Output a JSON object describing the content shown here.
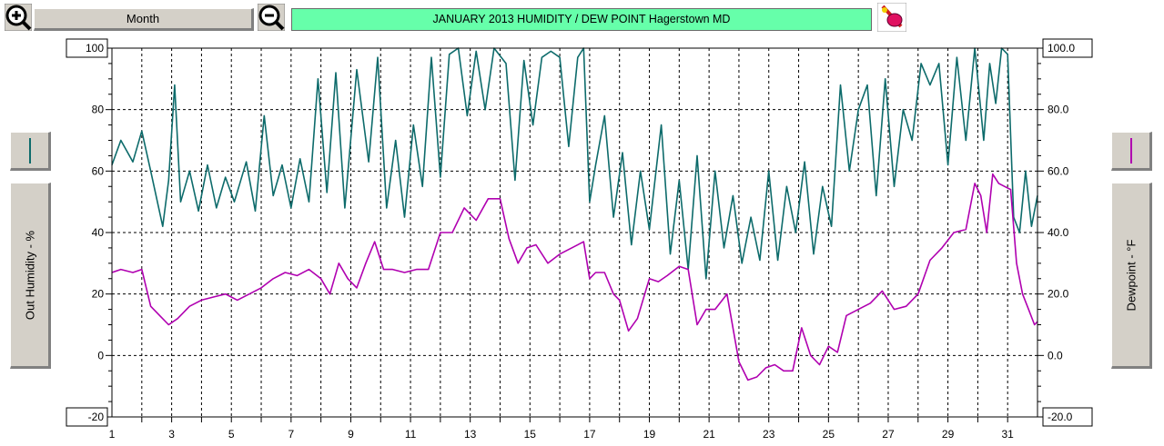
{
  "toolbar": {
    "period_label": "Month",
    "title": "JANUARY  2013  HUMIDITY / DEW POINT  Hagerstown MD"
  },
  "colors": {
    "humidity": "#0d6b6b",
    "dewpoint": "#b000b0",
    "title_bg": "#66ffaa",
    "panel": "#d4d0c8"
  },
  "icons": {
    "zoom_in": "zoom-in-icon",
    "zoom_out": "zoom-out-icon",
    "paint": "paint-icon"
  },
  "chart_data": {
    "type": "line",
    "title": "JANUARY  2013  HUMIDITY / DEW POINT  Hagerstown MD",
    "xlabel": "",
    "x_ticks": [
      "1",
      "3",
      "5",
      "7",
      "9",
      "11",
      "13",
      "15",
      "17",
      "19",
      "21",
      "23",
      "25",
      "27",
      "29",
      "31"
    ],
    "xlim": [
      1,
      32
    ],
    "left_axis": {
      "label": "Out Humidity - %",
      "ylim": [
        -20,
        100
      ],
      "ticks": [
        "100",
        "80",
        "60",
        "40",
        "20",
        "0",
        "-20"
      ]
    },
    "right_axis": {
      "label": "Dewpoint - °F",
      "ylim": [
        -20,
        100
      ],
      "ticks": [
        "100.0",
        "80.0",
        "60.0",
        "40.0",
        "20.0",
        "0.0",
        "-20.0"
      ]
    },
    "grid": true,
    "series": [
      {
        "name": "Out Humidity - %",
        "axis": "left",
        "x": [
          1,
          1.3,
          1.7,
          2,
          2.3,
          2.7,
          2.9,
          3.1,
          3.3,
          3.6,
          3.9,
          4.2,
          4.5,
          4.8,
          5.1,
          5.5,
          5.8,
          6.1,
          6.4,
          6.7,
          7,
          7.3,
          7.6,
          7.9,
          8.2,
          8.5,
          8.8,
          9.2,
          9.6,
          9.9,
          10.2,
          10.5,
          10.8,
          11.1,
          11.4,
          11.7,
          12,
          12.3,
          12.6,
          12.9,
          13.2,
          13.5,
          13.8,
          14.2,
          14.5,
          14.8,
          15.1,
          15.4,
          15.7,
          16,
          16.3,
          16.6,
          16.8,
          17,
          17.2,
          17.5,
          17.8,
          18.1,
          18.4,
          18.7,
          19,
          19.4,
          19.7,
          20,
          20.3,
          20.6,
          20.9,
          21.2,
          21.5,
          21.8,
          22.1,
          22.4,
          22.7,
          23,
          23.3,
          23.6,
          23.9,
          24.2,
          24.5,
          24.8,
          25.1,
          25.4,
          25.7,
          26,
          26.3,
          26.6,
          26.9,
          27.2,
          27.5,
          27.8,
          28.1,
          28.4,
          28.7,
          29,
          29.3,
          29.6,
          29.9,
          30.2,
          30.4,
          30.6,
          30.8,
          31,
          31.2,
          31.4,
          31.6,
          31.8,
          32
        ],
        "values": [
          62,
          70,
          63,
          73,
          60,
          42,
          57,
          88,
          50,
          60,
          47,
          62,
          48,
          58,
          50,
          63,
          47,
          78,
          52,
          62,
          48,
          64,
          50,
          90,
          53,
          92,
          48,
          93,
          63,
          97,
          48,
          70,
          45,
          75,
          55,
          97,
          58,
          98,
          100,
          78,
          99,
          80,
          100,
          95,
          57,
          96,
          75,
          97,
          99,
          97,
          68,
          97,
          100,
          50,
          62,
          78,
          45,
          66,
          36,
          60,
          41,
          75,
          33,
          57,
          28,
          65,
          25,
          60,
          35,
          52,
          30,
          45,
          31,
          60,
          31,
          55,
          40,
          63,
          33,
          55,
          42,
          88,
          60,
          80,
          88,
          52,
          90,
          55,
          80,
          70,
          95,
          88,
          95,
          62,
          97,
          70,
          100,
          70,
          95,
          82,
          100,
          98,
          45,
          40,
          60,
          42,
          52
        ]
      },
      {
        "name": "Dewpoint - °F",
        "axis": "right",
        "x": [
          1,
          1.3,
          1.7,
          2,
          2.3,
          2.6,
          2.9,
          3.2,
          3.6,
          4,
          4.4,
          4.8,
          5.2,
          5.6,
          6,
          6.4,
          6.8,
          7.2,
          7.6,
          8,
          8.3,
          8.6,
          8.9,
          9.2,
          9.5,
          9.8,
          10.1,
          10.4,
          10.8,
          11.2,
          11.6,
          12,
          12.4,
          12.8,
          13.2,
          13.6,
          14,
          14.3,
          14.6,
          14.9,
          15.2,
          15.6,
          16,
          16.4,
          16.8,
          17,
          17.2,
          17.5,
          17.8,
          18,
          18.3,
          18.6,
          19,
          19.3,
          19.6,
          20,
          20.3,
          20.6,
          20.9,
          21.2,
          21.6,
          22,
          22.3,
          22.6,
          22.9,
          23.2,
          23.5,
          23.8,
          24.1,
          24.4,
          24.7,
          25,
          25.3,
          25.6,
          26,
          26.4,
          26.8,
          27.2,
          27.6,
          28,
          28.4,
          28.8,
          29.2,
          29.6,
          29.9,
          30.1,
          30.3,
          30.5,
          30.7,
          30.9,
          31.1,
          31.3,
          31.5,
          31.7,
          31.9,
          32
        ],
        "values": [
          27,
          28,
          27,
          28,
          16,
          13,
          10,
          12,
          16,
          18,
          19,
          20,
          18,
          20,
          22,
          25,
          27,
          26,
          28,
          25,
          20,
          30,
          25,
          22,
          30,
          37,
          28,
          28,
          27,
          28,
          28,
          40,
          40,
          48,
          44,
          51,
          51,
          38,
          30,
          35,
          36,
          30,
          33,
          35,
          37,
          25,
          27,
          27,
          20,
          18,
          8,
          12,
          25,
          24,
          26,
          29,
          28,
          10,
          15,
          15,
          20,
          -2,
          -8,
          -7,
          -4,
          -3,
          -5,
          -5,
          9,
          0,
          -3,
          3,
          1,
          13,
          15,
          17,
          21,
          15,
          16,
          20,
          31,
          35,
          40,
          41,
          56,
          52,
          40,
          59,
          56,
          55,
          54,
          30,
          20,
          15,
          10,
          11
        ]
      }
    ]
  }
}
